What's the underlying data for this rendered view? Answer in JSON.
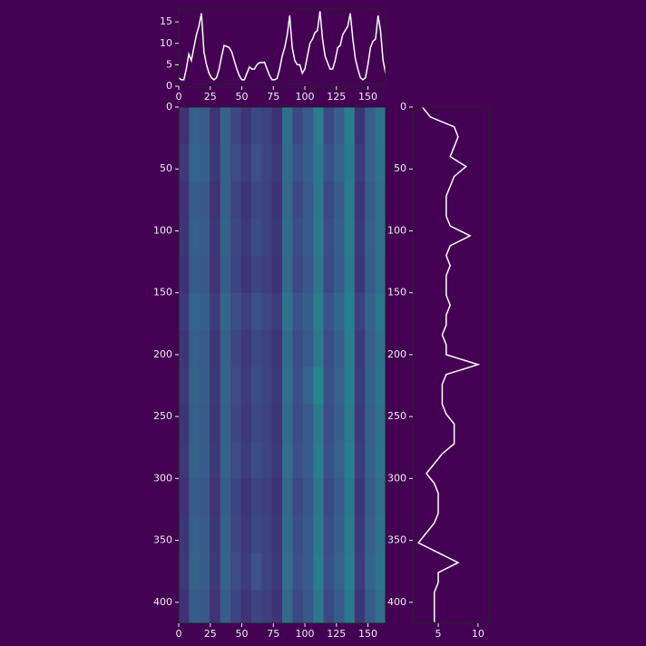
{
  "chart_data": [
    {
      "type": "line",
      "color": "#ffffff",
      "x": [
        0,
        2,
        4,
        6,
        8,
        10,
        12,
        14,
        16,
        18,
        20,
        22,
        24,
        26,
        28,
        30,
        32,
        34,
        36,
        38,
        40,
        42,
        44,
        46,
        48,
        50,
        52,
        54,
        56,
        58,
        60,
        62,
        64,
        66,
        68,
        70,
        72,
        74,
        76,
        78,
        80,
        82,
        84,
        86,
        88,
        90,
        92,
        94,
        96,
        98,
        100,
        102,
        104,
        106,
        108,
        110,
        112,
        114,
        116,
        118,
        120,
        122,
        124,
        126,
        128,
        130,
        132,
        134,
        136,
        138,
        140,
        142,
        144,
        146,
        148,
        150,
        152,
        154,
        156,
        158,
        160,
        162,
        164
      ],
      "values": [
        2,
        1.5,
        1.5,
        4,
        7.5,
        6,
        9,
        12,
        14,
        17,
        8,
        5,
        3,
        2,
        1.5,
        2,
        4,
        7,
        9.5,
        9.3,
        9,
        8,
        6,
        4,
        2.5,
        1.5,
        1.5,
        3,
        4.5,
        4,
        4,
        5,
        5.5,
        5.5,
        5.6,
        4,
        2.5,
        1.5,
        1.5,
        1.8,
        4,
        7,
        9,
        12,
        16.5,
        9,
        6,
        5,
        5,
        3,
        4,
        7,
        10,
        11,
        12.5,
        13,
        17.5,
        11,
        7,
        5.5,
        4,
        4,
        6,
        9,
        9.5,
        12,
        13,
        14,
        17,
        11,
        6.5,
        4,
        2,
        1.5,
        2,
        5,
        9,
        10.5,
        11,
        16.5,
        13,
        6,
        3
      ],
      "xlim": [
        0,
        164
      ],
      "ylim": [
        0,
        18
      ],
      "xticks": [
        0,
        25,
        50,
        75,
        100,
        125,
        150
      ],
      "yticks": [
        0,
        5,
        10,
        15
      ]
    },
    {
      "type": "heatmap",
      "colormap": "viridis",
      "zlim": [
        0,
        1
      ],
      "xbins": [
        0,
        8.2,
        16.4,
        24.6,
        32.8,
        41,
        49.2,
        57.4,
        65.6,
        73.8,
        82,
        90.2,
        98.4,
        106.6,
        114.8,
        123,
        131.2,
        139.4,
        147.6,
        155.8,
        164
      ],
      "ybins": [
        0,
        30,
        60,
        90,
        120,
        150,
        180,
        210,
        240,
        270,
        300,
        330,
        360,
        390,
        420
      ],
      "z": [
        [
          0.15,
          0.3,
          0.28,
          0.15,
          0.31,
          0.22,
          0.16,
          0.22,
          0.2,
          0.15,
          0.36,
          0.22,
          0.28,
          0.42,
          0.22,
          0.3,
          0.42,
          0.16,
          0.3,
          0.38
        ],
        [
          0.17,
          0.32,
          0.3,
          0.17,
          0.3,
          0.23,
          0.18,
          0.24,
          0.21,
          0.17,
          0.35,
          0.24,
          0.3,
          0.4,
          0.24,
          0.32,
          0.4,
          0.18,
          0.31,
          0.37
        ],
        [
          0.15,
          0.29,
          0.27,
          0.15,
          0.3,
          0.21,
          0.16,
          0.22,
          0.2,
          0.15,
          0.34,
          0.22,
          0.28,
          0.4,
          0.22,
          0.29,
          0.41,
          0.16,
          0.29,
          0.36
        ],
        [
          0.16,
          0.3,
          0.28,
          0.16,
          0.31,
          0.22,
          0.17,
          0.23,
          0.2,
          0.16,
          0.35,
          0.23,
          0.29,
          0.41,
          0.23,
          0.3,
          0.41,
          0.17,
          0.3,
          0.37
        ],
        [
          0.15,
          0.28,
          0.27,
          0.15,
          0.29,
          0.21,
          0.16,
          0.21,
          0.19,
          0.15,
          0.34,
          0.22,
          0.27,
          0.39,
          0.22,
          0.29,
          0.4,
          0.16,
          0.29,
          0.36
        ],
        [
          0.18,
          0.32,
          0.3,
          0.18,
          0.32,
          0.24,
          0.19,
          0.24,
          0.22,
          0.18,
          0.38,
          0.25,
          0.3,
          0.42,
          0.25,
          0.33,
          0.43,
          0.19,
          0.32,
          0.39
        ],
        [
          0.16,
          0.3,
          0.28,
          0.16,
          0.3,
          0.22,
          0.17,
          0.22,
          0.2,
          0.16,
          0.35,
          0.23,
          0.28,
          0.41,
          0.23,
          0.3,
          0.42,
          0.17,
          0.3,
          0.37
        ],
        [
          0.17,
          0.31,
          0.29,
          0.17,
          0.31,
          0.23,
          0.18,
          0.23,
          0.21,
          0.17,
          0.36,
          0.24,
          0.32,
          0.45,
          0.24,
          0.31,
          0.42,
          0.18,
          0.31,
          0.38
        ],
        [
          0.16,
          0.3,
          0.28,
          0.16,
          0.3,
          0.22,
          0.17,
          0.22,
          0.2,
          0.16,
          0.35,
          0.23,
          0.28,
          0.41,
          0.23,
          0.3,
          0.41,
          0.17,
          0.3,
          0.37
        ],
        [
          0.17,
          0.31,
          0.29,
          0.17,
          0.31,
          0.23,
          0.18,
          0.23,
          0.21,
          0.17,
          0.36,
          0.24,
          0.29,
          0.42,
          0.24,
          0.31,
          0.42,
          0.18,
          0.31,
          0.38
        ],
        [
          0.15,
          0.29,
          0.27,
          0.15,
          0.29,
          0.21,
          0.16,
          0.21,
          0.19,
          0.15,
          0.34,
          0.22,
          0.27,
          0.4,
          0.22,
          0.29,
          0.4,
          0.16,
          0.29,
          0.36
        ],
        [
          0.16,
          0.3,
          0.28,
          0.16,
          0.3,
          0.22,
          0.17,
          0.22,
          0.2,
          0.16,
          0.35,
          0.23,
          0.28,
          0.41,
          0.23,
          0.3,
          0.41,
          0.17,
          0.3,
          0.37
        ],
        [
          0.17,
          0.31,
          0.29,
          0.17,
          0.31,
          0.23,
          0.18,
          0.25,
          0.21,
          0.17,
          0.36,
          0.24,
          0.29,
          0.42,
          0.24,
          0.31,
          0.42,
          0.18,
          0.33,
          0.38
        ],
        [
          0.15,
          0.29,
          0.27,
          0.15,
          0.29,
          0.21,
          0.16,
          0.21,
          0.19,
          0.15,
          0.34,
          0.22,
          0.27,
          0.4,
          0.22,
          0.29,
          0.4,
          0.16,
          0.29,
          0.36
        ]
      ],
      "xlim": [
        0,
        164
      ],
      "ylim": [
        417,
        0
      ],
      "xticks": [
        0,
        25,
        50,
        75,
        100,
        125,
        150
      ],
      "yticks": [
        0,
        50,
        100,
        150,
        200,
        250,
        300,
        350,
        400
      ]
    },
    {
      "type": "line",
      "orientation": "horizontal",
      "color": "#ffffff",
      "y": [
        0,
        8,
        16,
        24,
        32,
        40,
        48,
        56,
        64,
        72,
        80,
        88,
        96,
        104,
        112,
        120,
        128,
        136,
        144,
        152,
        160,
        168,
        176,
        184,
        192,
        200,
        208,
        216,
        224,
        232,
        240,
        248,
        256,
        264,
        272,
        280,
        288,
        296,
        304,
        312,
        320,
        328,
        336,
        344,
        352,
        360,
        368,
        376,
        384,
        392,
        400,
        408,
        416
      ],
      "values": [
        3,
        4,
        7,
        7.5,
        7,
        6.5,
        8.5,
        7,
        6.5,
        6,
        6,
        6,
        6.5,
        9,
        6.5,
        6,
        6.5,
        6,
        6,
        6,
        6.5,
        6,
        6,
        5.5,
        6,
        6,
        10,
        6,
        5.5,
        5.5,
        5.5,
        6,
        7,
        7,
        7,
        5.5,
        4.5,
        3.5,
        4.5,
        5,
        5,
        5,
        4.5,
        3.5,
        2.5,
        5,
        7.5,
        5,
        5,
        4.5,
        4.5,
        4.5,
        4.5
      ],
      "xlim": [
        1.8,
        11.5
      ],
      "ylim": [
        417,
        0
      ],
      "xticks": [
        5,
        10
      ],
      "yticks": [
        0,
        50,
        100,
        150,
        200,
        250,
        300,
        350,
        400
      ]
    }
  ]
}
